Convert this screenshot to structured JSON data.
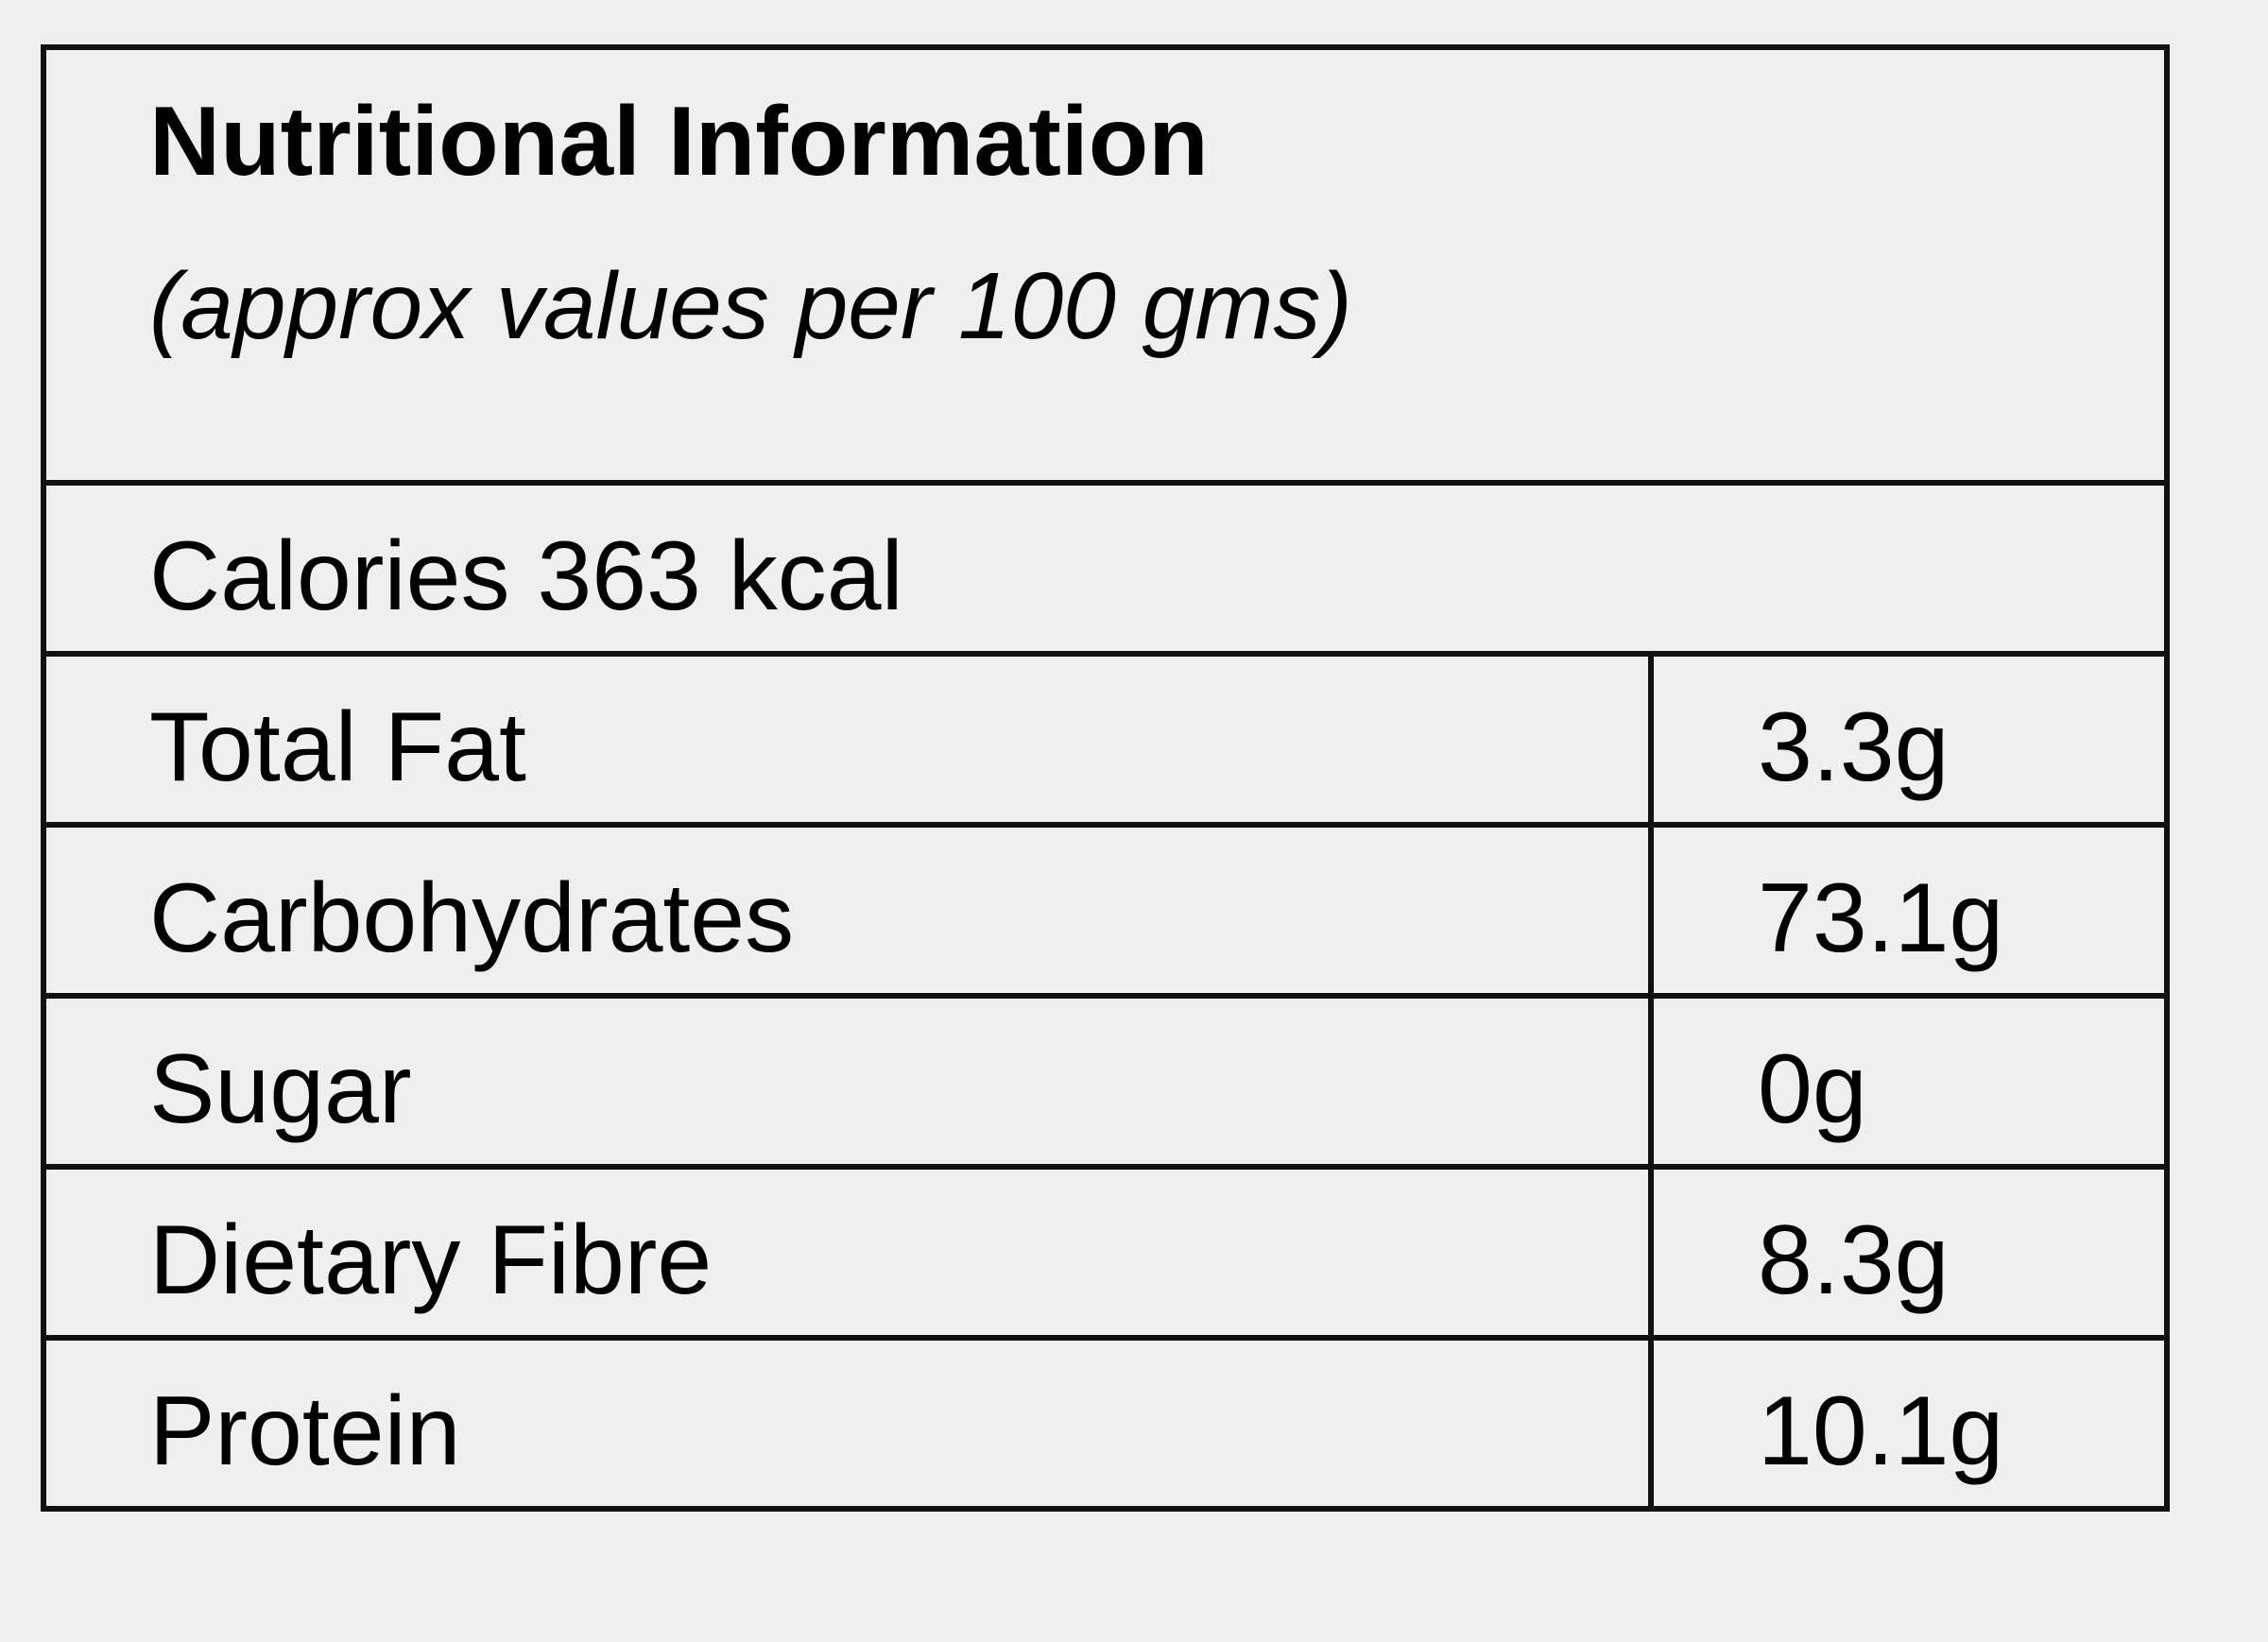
{
  "header": {
    "title": "Nutritional Information",
    "subtitle": "(approx values per 100 gms)"
  },
  "calories": "Calories 363 kcal",
  "table": {
    "rows": [
      [
        "Total Fat",
        "3.3g"
      ],
      [
        "Carbohydrates",
        "73.1g"
      ],
      [
        "Sugar",
        "0g"
      ],
      [
        "Dietary Fibre",
        "8.3g"
      ],
      [
        "Protein",
        "10.1g"
      ]
    ]
  }
}
